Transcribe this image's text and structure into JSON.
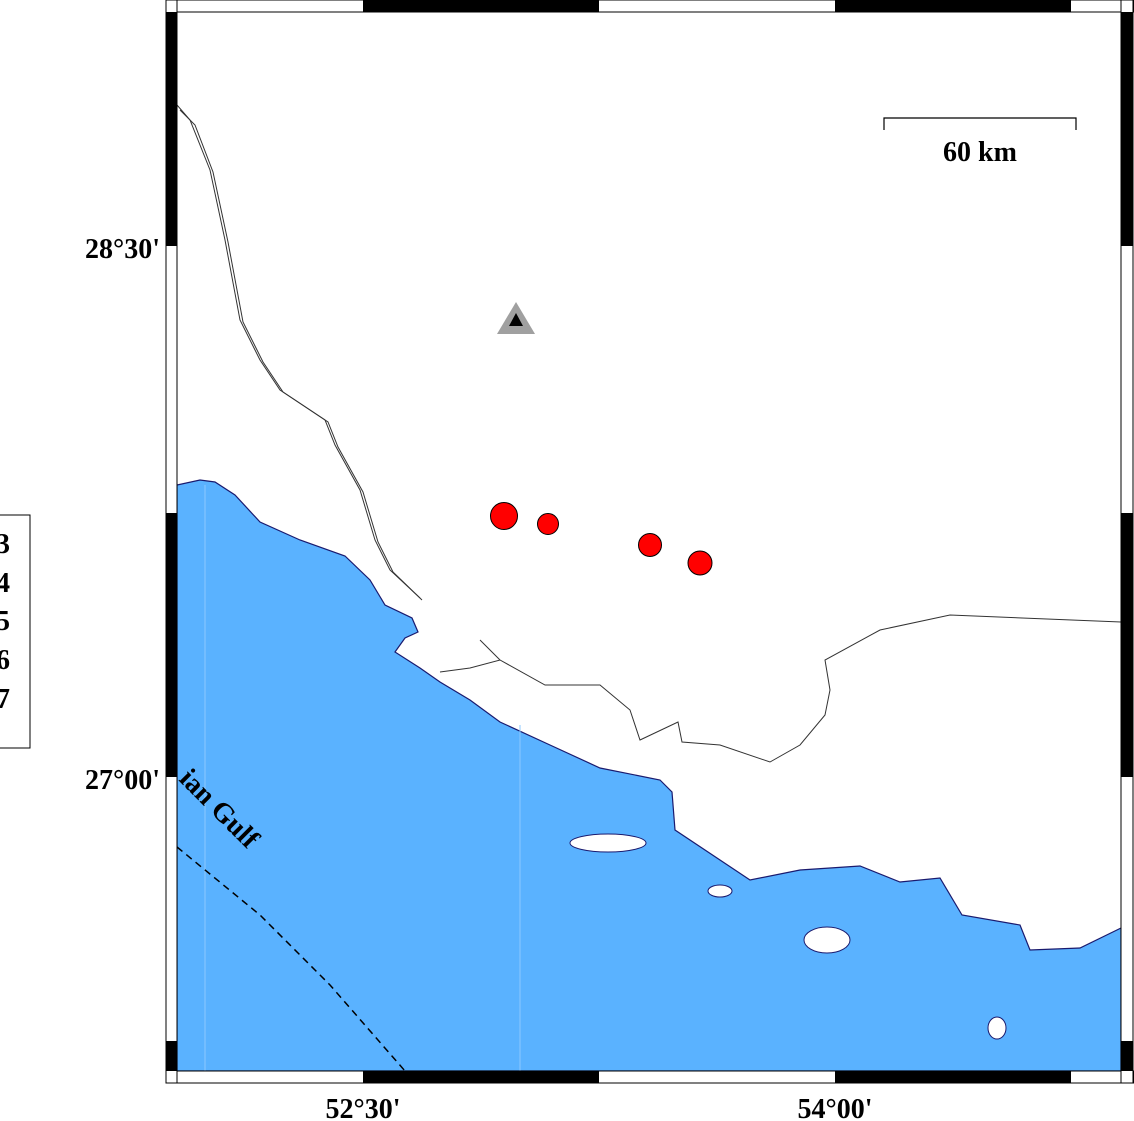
{
  "map": {
    "sea_label": "ian Gulf",
    "scale_bar_label": "60 km",
    "lat_ticks": [
      "28°30'",
      "27°00'"
    ],
    "lon_ticks": [
      "52°30'",
      "54°00'"
    ],
    "legend_values": [
      "3",
      "4",
      "5",
      "6",
      "7"
    ],
    "colors": {
      "sea": "#5ab2ff",
      "land": "#ffffff",
      "event": "#ff0000",
      "station": "#a0a0a0"
    },
    "events": [
      {
        "magnitude_class": "large"
      },
      {
        "magnitude_class": "small"
      },
      {
        "magnitude_class": "medium"
      },
      {
        "magnitude_class": "medium"
      }
    ],
    "station_icon": "triangle-icon"
  }
}
